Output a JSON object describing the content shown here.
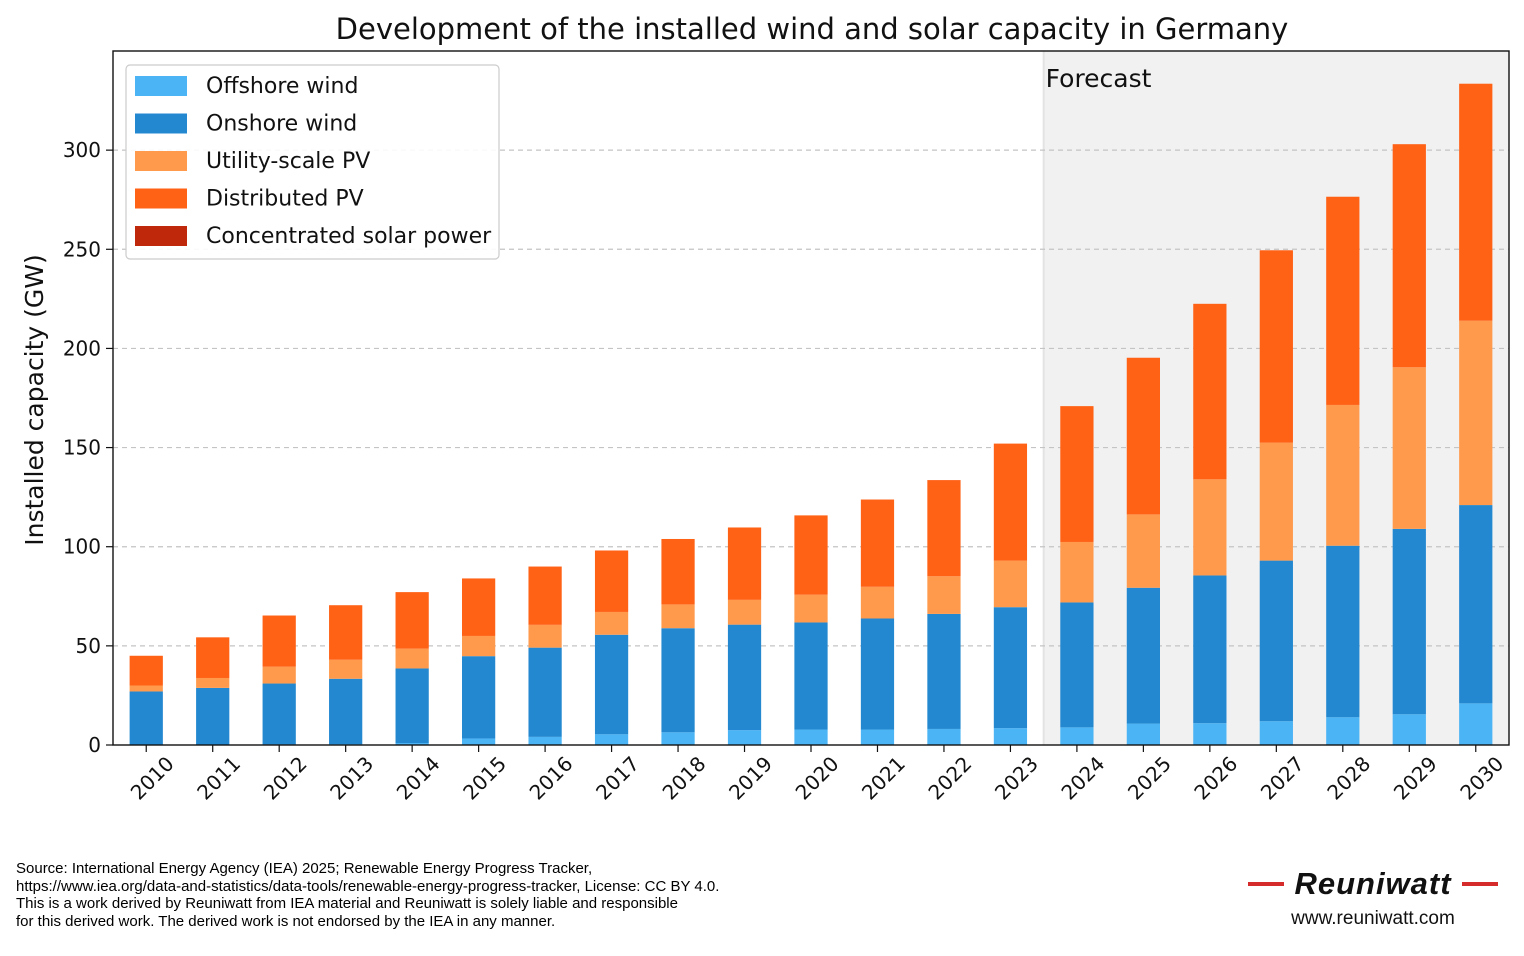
{
  "chart_data": {
    "type": "bar",
    "stacked": true,
    "title": "Development of the installed wind and solar capacity in Germany",
    "xlabel": "",
    "ylabel": "Installed capacity (GW)",
    "ylim": [
      0,
      350
    ],
    "yticks": [
      0,
      50,
      100,
      150,
      200,
      250,
      300
    ],
    "grid": "y-dashed",
    "legend_position": "top-left",
    "annotation": "Forecast",
    "forecast_from": "2024",
    "categories": [
      "2010",
      "2011",
      "2012",
      "2013",
      "2014",
      "2015",
      "2016",
      "2017",
      "2018",
      "2019",
      "2020",
      "2021",
      "2022",
      "2023",
      "2024",
      "2025",
      "2026",
      "2027",
      "2028",
      "2029",
      "2030"
    ],
    "series": [
      {
        "name": "Offshore wind",
        "color": "#4ab4f5",
        "values": [
          0.1,
          0.2,
          0.3,
          0.5,
          1.0,
          3.3,
          4.1,
          5.4,
          6.4,
          7.5,
          7.8,
          7.8,
          8.1,
          8.5,
          8.9,
          10.8,
          11.0,
          12.0,
          14.0,
          15.5,
          21.0
        ]
      },
      {
        "name": "Onshore wind",
        "color": "#2388d0",
        "values": [
          26.9,
          28.6,
          30.7,
          32.9,
          37.6,
          41.5,
          45.0,
          50.2,
          52.5,
          53.2,
          54.0,
          56.0,
          58.0,
          61.0,
          63.0,
          68.5,
          74.5,
          81.0,
          86.5,
          93.5,
          100.0
        ]
      },
      {
        "name": "Utility-scale PV",
        "color": "#ff9a4d",
        "values": [
          3.0,
          5.0,
          8.5,
          9.6,
          10.0,
          10.2,
          11.5,
          11.5,
          12.0,
          12.5,
          14.0,
          16.0,
          19.0,
          23.5,
          30.5,
          37.0,
          48.5,
          59.5,
          71.0,
          81.5,
          93.0
        ]
      },
      {
        "name": "Distributed PV",
        "color": "#ff6115",
        "values": [
          15.0,
          20.5,
          25.8,
          27.5,
          28.5,
          29.0,
          29.4,
          31.0,
          33.0,
          36.5,
          40.0,
          44.0,
          48.5,
          59.0,
          68.5,
          79.0,
          88.5,
          97.0,
          105.0,
          112.5,
          119.5
        ]
      },
      {
        "name": "Concentrated solar power",
        "color": "#c0280c",
        "values": [
          0,
          0,
          0,
          0,
          0,
          0,
          0,
          0,
          0,
          0,
          0,
          0,
          0,
          0,
          0,
          0,
          0,
          0,
          0,
          0,
          0
        ]
      }
    ]
  },
  "source_lines": [
    "Source: International Energy Agency (IEA) 2025; Renewable Energy Progress Tracker,",
    "https://www.iea.org/data-and-statistics/data-tools/renewable-energy-progress-tracker, License: CC BY 4.0.",
    "This is a work derived by Reuniwatt from IEA material and Reuniwatt is solely liable and responsible",
    "for this derived work. The derived work is not endorsed by the IEA in any manner."
  ],
  "brand": {
    "name": "Reuniwatt",
    "url": "www.reuniwatt.com",
    "accent": "#d52b2b"
  }
}
